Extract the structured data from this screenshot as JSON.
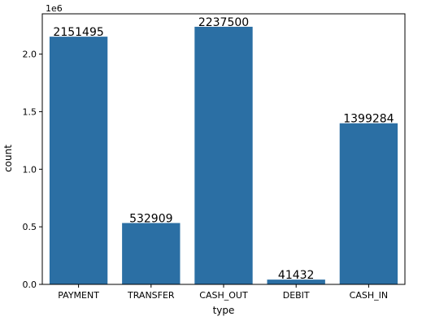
{
  "chart_data": {
    "type": "bar",
    "categories": [
      "PAYMENT",
      "TRANSFER",
      "CASH_OUT",
      "DEBIT",
      "CASH_IN"
    ],
    "values": [
      2151495,
      532909,
      2237500,
      41432,
      1399284
    ],
    "data_labels": [
      "2151495",
      "532909",
      "2237500",
      "41432",
      "1399284"
    ],
    "xlabel": "type",
    "ylabel": "count",
    "y_offset_text": "1e6",
    "ylim": [
      0,
      2350000
    ],
    "y_ticks": [
      0,
      500000,
      1000000,
      1500000,
      2000000
    ],
    "y_tick_labels": [
      "0.0",
      "0.5",
      "1.0",
      "1.5",
      "2.0"
    ],
    "bar_color": "#2b6fa4",
    "grid": false,
    "legend": "none"
  }
}
